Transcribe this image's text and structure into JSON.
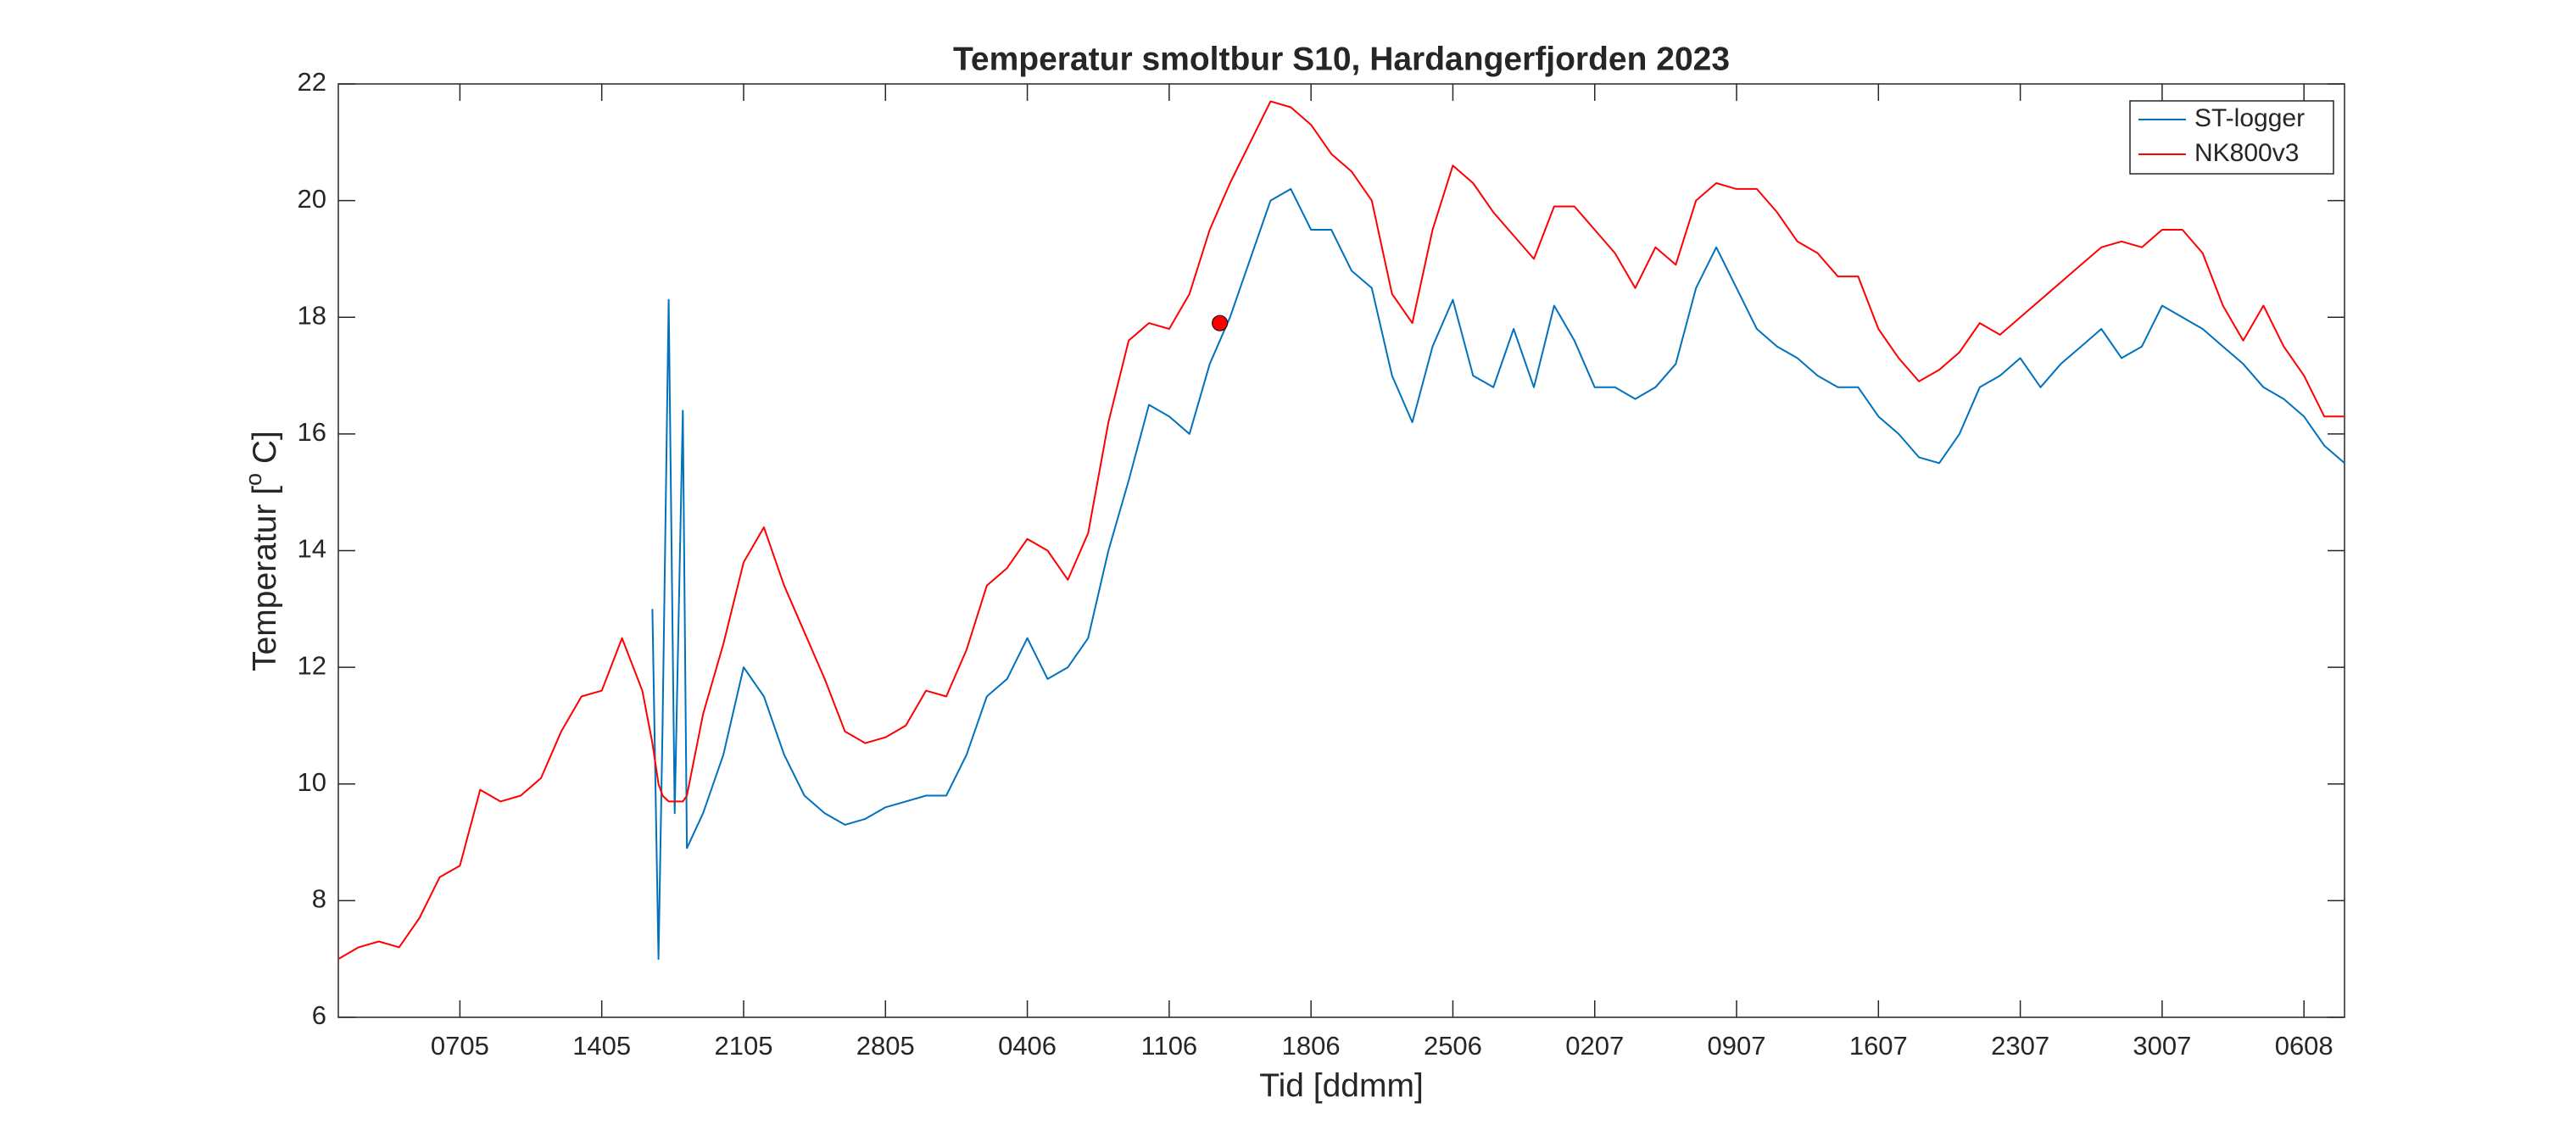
{
  "chart_data": {
    "type": "line",
    "title": "Temperatur smoltbur S10, Hardangerfjorden 2023",
    "xlabel": "Tid [ddmm]",
    "ylabel": [
      "Temperatur [",
      "o",
      " C]"
    ],
    "x": [
      121,
      122,
      123,
      124,
      125,
      126,
      127,
      128,
      129,
      130,
      131,
      132,
      133,
      134,
      135,
      136,
      136.5,
      136.8,
      137.0,
      137.3,
      137.6,
      138.0,
      138.2,
      139,
      140,
      141,
      142,
      143,
      144,
      145,
      146,
      147,
      148,
      149,
      150,
      151,
      152,
      153,
      154,
      155,
      156,
      157,
      158,
      159,
      160,
      161,
      162,
      163,
      164,
      165,
      166,
      167,
      168,
      169,
      170,
      171,
      172,
      173,
      174,
      175,
      176,
      177,
      178,
      179,
      180,
      181,
      182,
      183,
      184,
      185,
      186,
      187,
      188,
      189,
      190,
      191,
      192,
      193,
      194,
      195,
      196,
      197,
      198,
      199,
      200,
      201,
      202,
      203,
      204,
      205,
      206,
      207,
      208,
      209,
      210,
      211,
      212,
      213,
      214,
      215,
      216,
      217,
      218,
      219,
      220
    ],
    "series": [
      {
        "name": "ST-logger",
        "color": "#0072bd",
        "values": [
          null,
          null,
          null,
          null,
          null,
          null,
          null,
          null,
          null,
          null,
          null,
          null,
          null,
          null,
          null,
          null,
          13.0,
          7.0,
          11.0,
          18.3,
          9.5,
          16.4,
          8.9,
          9.5,
          10.5,
          12.0,
          11.5,
          10.5,
          9.8,
          9.5,
          9.3,
          9.4,
          9.6,
          9.7,
          9.8,
          9.8,
          10.5,
          11.5,
          11.8,
          12.5,
          11.8,
          12.0,
          12.5,
          14.0,
          15.2,
          16.5,
          16.3,
          16.0,
          17.2,
          18.0,
          19.0,
          20.0,
          20.2,
          19.5,
          19.5,
          18.8,
          18.5,
          17.0,
          16.2,
          17.5,
          18.3,
          17.0,
          16.8,
          17.8,
          16.8,
          18.2,
          17.6,
          16.8,
          16.8,
          16.6,
          16.8,
          17.2,
          18.5,
          19.2,
          18.5,
          17.8,
          17.5,
          17.3,
          17.0,
          16.8,
          16.8,
          16.3,
          16.0,
          15.6,
          15.5,
          16.0,
          16.8,
          17.0,
          17.3,
          16.8,
          17.2,
          17.5,
          17.8,
          17.3,
          17.5,
          18.2,
          18.0,
          17.8,
          17.5,
          17.2,
          16.8,
          16.6,
          16.3,
          15.8,
          15.5
        ]
      },
      {
        "name": "NK800v3",
        "color": "#ff0000",
        "values": [
          7.0,
          7.2,
          7.3,
          7.2,
          7.7,
          8.4,
          8.6,
          9.9,
          9.7,
          9.8,
          10.1,
          10.9,
          11.5,
          11.6,
          12.5,
          11.6,
          10.7,
          10.0,
          9.8,
          9.7,
          9.7,
          9.7,
          9.8,
          11.2,
          12.4,
          13.8,
          14.4,
          13.4,
          12.6,
          11.8,
          10.9,
          10.7,
          10.8,
          11.0,
          11.6,
          11.5,
          12.3,
          13.4,
          13.7,
          14.2,
          14.0,
          13.5,
          14.3,
          16.2,
          17.6,
          17.9,
          17.8,
          18.4,
          19.5,
          20.3,
          21.0,
          21.7,
          21.6,
          21.3,
          20.8,
          20.5,
          20.0,
          18.4,
          17.9,
          19.5,
          20.6,
          20.3,
          19.8,
          19.4,
          19.0,
          19.9,
          19.9,
          19.5,
          19.1,
          18.5,
          19.2,
          18.9,
          20.0,
          20.3,
          20.2,
          20.2,
          19.8,
          19.3,
          19.1,
          18.7,
          18.7,
          17.8,
          17.3,
          16.9,
          17.1,
          17.4,
          17.9,
          17.7,
          18.0,
          18.3,
          18.6,
          18.9,
          19.2,
          19.3,
          19.2,
          19.5,
          19.5,
          19.1,
          18.2,
          17.6,
          18.2,
          17.5,
          17.0,
          16.3,
          16.3
        ]
      }
    ],
    "point": {
      "x": 164.5,
      "y": 17.9,
      "color": "#ff0000"
    },
    "xlim": [
      121,
      220
    ],
    "xticks": [
      {
        "value": 127,
        "label": "0705"
      },
      {
        "value": 134,
        "label": "1405"
      },
      {
        "value": 141,
        "label": "2105"
      },
      {
        "value": 148,
        "label": "2805"
      },
      {
        "value": 155,
        "label": "0406"
      },
      {
        "value": 162,
        "label": "1106"
      },
      {
        "value": 169,
        "label": "1806"
      },
      {
        "value": 176,
        "label": "2506"
      },
      {
        "value": 183,
        "label": "0207"
      },
      {
        "value": 190,
        "label": "0907"
      },
      {
        "value": 197,
        "label": "1607"
      },
      {
        "value": 204,
        "label": "2307"
      },
      {
        "value": 211,
        "label": "3007"
      },
      {
        "value": 218,
        "label": "0608"
      }
    ],
    "ylim": [
      6,
      22
    ],
    "yticks": [
      6,
      8,
      10,
      12,
      14,
      16,
      18,
      20,
      22
    ],
    "grid": false,
    "legend": "top-right"
  }
}
